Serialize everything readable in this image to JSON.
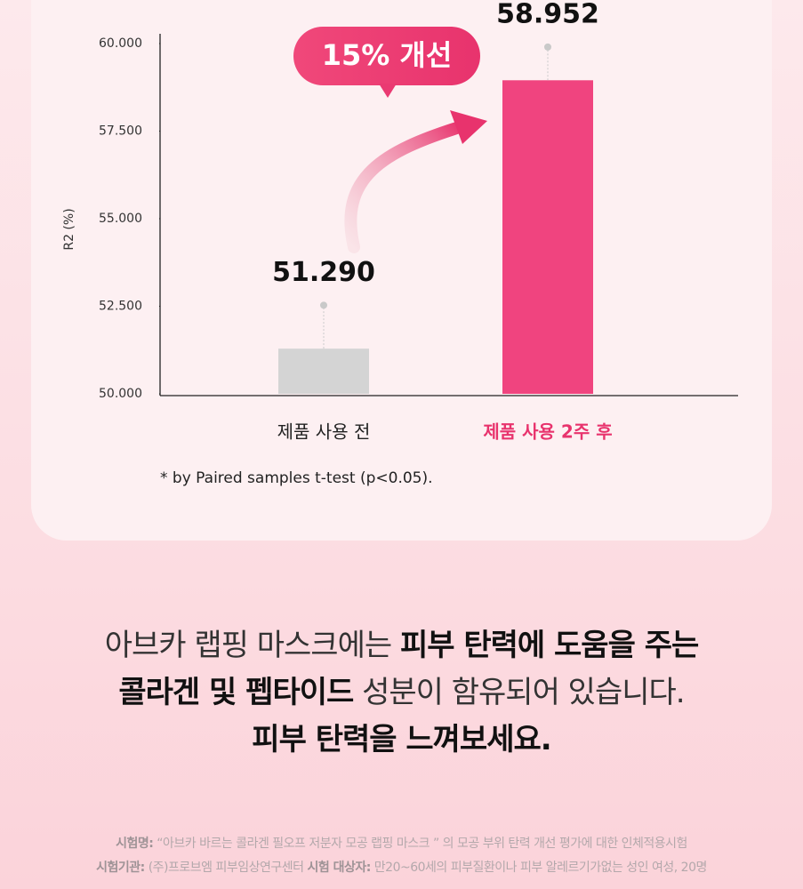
{
  "chart_data": {
    "type": "bar",
    "ylabel": "R2 (%)",
    "categories": [
      "제품 사용 전",
      "제품 사용 2주 후"
    ],
    "values": [
      51.29,
      58.952
    ],
    "value_labels": [
      "51.290",
      "58.952"
    ],
    "errors": [
      1.24,
      0.95
    ],
    "colors": [
      "#d4d4d4",
      "#f0447f"
    ],
    "ylim": [
      50,
      60
    ],
    "yticks": [
      {
        "value": 50,
        "label": "50.000"
      },
      {
        "value": 52.5,
        "label": "52.500"
      },
      {
        "value": 55,
        "label": "55.000"
      },
      {
        "value": 57.5,
        "label": "57.500"
      },
      {
        "value": 60,
        "label": "60.000"
      }
    ],
    "annotation": "15% 개선",
    "footnote": "* by Paired samples t-test (p<0.05)."
  },
  "description": [
    [
      {
        "text": "아브카 랩핑 마스크에는 ",
        "bold": false
      },
      {
        "text": "피부 탄력에 도움을 주는",
        "bold": true
      }
    ],
    [
      {
        "text": "콜라겐 및 펩타이드",
        "bold": true
      },
      {
        "text": " 성분이 함유되어 있습니다.",
        "bold": false
      }
    ],
    [
      {
        "text": "피부 탄력을 느껴보세요.",
        "bold": true
      }
    ]
  ],
  "footer": [
    [
      {
        "text": "시험명:",
        "bold": true
      },
      {
        "text": " “아브카 바르는 콜라겐 필오프 저분자 모공 랩핑 마스크 ” 의 모공 부위 탄력 개선 평가에 대한 인체적용시험",
        "bold": false
      }
    ],
    [
      {
        "text": "시험기관:",
        "bold": true
      },
      {
        "text": " (주)프로브엠 피부임상연구센터 ",
        "bold": false
      },
      {
        "text": "시험 대상자:",
        "bold": true
      },
      {
        "text": " 만20~60세의 피부질환이나 피부 알레르기가없는 성인 여성, 20명",
        "bold": false
      }
    ]
  ]
}
